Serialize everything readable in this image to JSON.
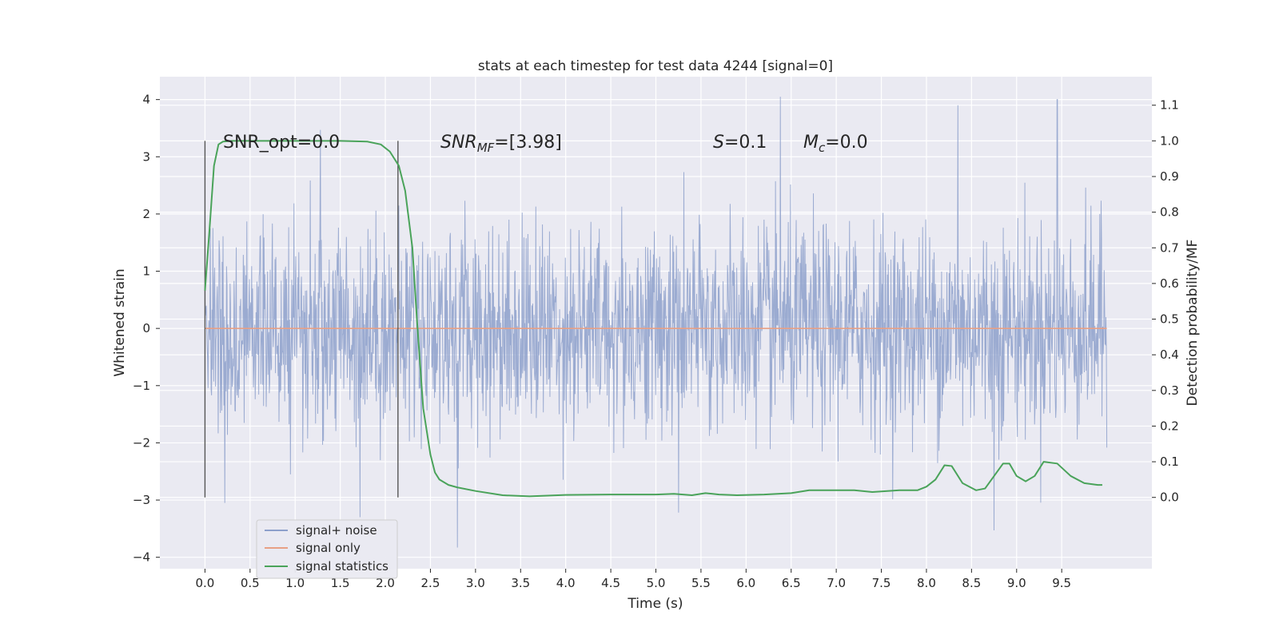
{
  "chart_data": {
    "type": "line",
    "title": "stats at each timestep for test data 4244 [signal=0]",
    "xlabel": "Time (s)",
    "ylabel": "Whitened strain",
    "ylabel_right": "Detection probability/MF",
    "xlim": [
      -0.5,
      10.5
    ],
    "ylim": [
      -4.2,
      4.4
    ],
    "ylim_right": [
      -0.2,
      1.18
    ],
    "x_ticks": [
      0.0,
      0.5,
      1.0,
      1.5,
      2.0,
      2.5,
      3.0,
      3.5,
      4.0,
      4.5,
      5.0,
      5.5,
      6.0,
      6.5,
      7.0,
      7.5,
      8.0,
      8.5,
      9.0,
      9.5
    ],
    "x_tick_labels": [
      "0.0",
      "0.5",
      "1.0",
      "1.5",
      "2.0",
      "2.5",
      "3.0",
      "3.5",
      "4.0",
      "4.5",
      "5.0",
      "5.5",
      "6.0",
      "6.5",
      "7.0",
      "7.5",
      "8.0",
      "8.5",
      "9.0",
      "9.5"
    ],
    "y_ticks": [
      4,
      3,
      2,
      1,
      0,
      -1,
      -2,
      -3,
      -4
    ],
    "y_tick_labels": [
      "4",
      "3",
      "2",
      "1",
      "0",
      "−1",
      "−2",
      "−3",
      "−4"
    ],
    "y_right_ticks": [
      1.1,
      1.0,
      0.9,
      0.8,
      0.7,
      0.6,
      0.5,
      0.4,
      0.3,
      0.2,
      0.1,
      0.0
    ],
    "y_right_tick_labels": [
      "1.1",
      "1.0",
      "0.9",
      "0.8",
      "0.7",
      "0.6",
      "0.5",
      "0.4",
      "0.3",
      "0.2",
      "0.1",
      "0.0"
    ],
    "grid": true,
    "legend_position": "lower-left",
    "annotations": {
      "snr_opt": "SNR_opt=0.0",
      "snr_mf_label": "SNR",
      "snr_mf_sub": "MF",
      "snr_mf_value": "=[3.98]",
      "s_label": "S",
      "s_value": "=0.1",
      "mc_label": "M",
      "mc_sub": "c",
      "mc_value": "=0.0"
    },
    "vertical_markers": [
      0.0,
      2.14
    ],
    "series": [
      {
        "name": "signal+ noise",
        "color": "#8da0cb",
        "axis": "left",
        "envelope_t": [
          0.0,
          1.0,
          2.0,
          3.0,
          4.0,
          5.0,
          6.0,
          7.0,
          8.0,
          9.0,
          10.0
        ],
        "envelope_abs": [
          2.4,
          2.4,
          2.4,
          2.4,
          2.4,
          2.4,
          2.4,
          2.4,
          2.4,
          2.4,
          2.4
        ],
        "noise_sigma": 0.9,
        "notable_peaks": [
          {
            "t": 1.28,
            "v": 3.47
          },
          {
            "t": 1.72,
            "v": -3.3
          },
          {
            "t": 2.8,
            "v": -3.83
          },
          {
            "t": 6.38,
            "v": 4.05
          },
          {
            "t": 8.35,
            "v": 3.9
          },
          {
            "t": 8.75,
            "v": -3.53
          },
          {
            "t": 9.45,
            "v": 4.0
          },
          {
            "t": 5.25,
            "v": -3.22
          },
          {
            "t": 0.22,
            "v": -3.05
          }
        ]
      },
      {
        "name": "signal only",
        "color": "#e8a085",
        "axis": "left",
        "x": [
          0.0,
          10.0
        ],
        "y": [
          0.0,
          0.0
        ]
      },
      {
        "name": "signal statistics",
        "color": "#4aa35a",
        "axis": "right",
        "x": [
          0.0,
          0.05,
          0.1,
          0.15,
          0.2,
          0.3,
          0.5,
          1.0,
          1.5,
          1.8,
          1.95,
          2.05,
          2.15,
          2.22,
          2.3,
          2.35,
          2.42,
          2.5,
          2.55,
          2.6,
          2.7,
          2.8,
          3.0,
          3.3,
          3.6,
          4.0,
          4.5,
          5.0,
          5.2,
          5.4,
          5.55,
          5.7,
          5.9,
          6.2,
          6.5,
          6.7,
          6.9,
          7.2,
          7.4,
          7.7,
          7.9,
          8.0,
          8.1,
          8.2,
          8.28,
          8.4,
          8.55,
          8.65,
          8.75,
          8.85,
          8.92,
          9.0,
          9.1,
          9.2,
          9.3,
          9.45,
          9.6,
          9.75,
          9.9,
          9.95
        ],
        "y": [
          0.58,
          0.75,
          0.93,
          0.99,
          0.998,
          1.0,
          1.0,
          1.0,
          1.0,
          0.998,
          0.99,
          0.97,
          0.93,
          0.86,
          0.7,
          0.5,
          0.25,
          0.12,
          0.07,
          0.05,
          0.035,
          0.028,
          0.018,
          0.006,
          0.003,
          0.007,
          0.008,
          0.008,
          0.01,
          0.006,
          0.012,
          0.008,
          0.006,
          0.008,
          0.012,
          0.02,
          0.02,
          0.02,
          0.015,
          0.02,
          0.02,
          0.03,
          0.05,
          0.09,
          0.088,
          0.04,
          0.02,
          0.025,
          0.06,
          0.095,
          0.095,
          0.06,
          0.045,
          0.06,
          0.1,
          0.095,
          0.06,
          0.04,
          0.035,
          0.035
        ]
      }
    ]
  }
}
